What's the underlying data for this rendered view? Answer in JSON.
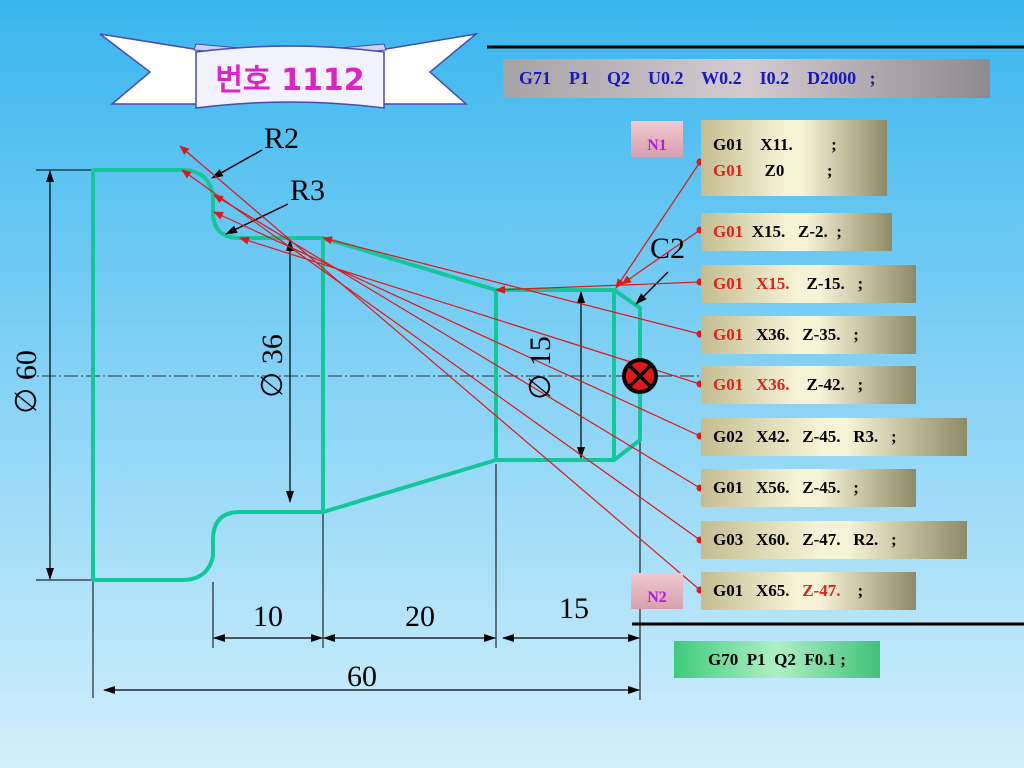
{
  "title": "번호 1112",
  "header_code": "G71    P1    Q2    U0.2    W0.2    I0.2    D2000   ;",
  "footer_code": "G70  P1  Q2  F0.1 ;",
  "labels": {
    "n1": "N1",
    "n2": "N2",
    "r2": "R2",
    "r3": "R3",
    "c2": "C2",
    "dia60": "∅ 60",
    "dia36": "∅ 36",
    "dia15": "∅ 15",
    "dim10": "10",
    "dim20": "20",
    "dim15": "15",
    "dim60": "60"
  },
  "blocks": [
    {
      "lines": [
        [
          {
            "t": "G01    X11.",
            "red": false
          },
          {
            "t": "         ;",
            "red": false
          }
        ],
        [
          {
            "t": "G01",
            "red": true
          },
          {
            "t": "     Z0",
            "red": false
          },
          {
            "t": "          ;",
            "red": false
          }
        ]
      ]
    },
    {
      "lines": [
        [
          {
            "t": "G01",
            "red": true
          },
          {
            "t": "  X15.   Z-2.  ;",
            "red": false
          }
        ]
      ]
    },
    {
      "lines": [
        [
          {
            "t": "G01",
            "red": true
          },
          {
            "t": "   ",
            "red": false
          },
          {
            "t": "X15.",
            "red": true
          },
          {
            "t": "    Z-15.   ;",
            "red": false
          }
        ]
      ]
    },
    {
      "lines": [
        [
          {
            "t": "G01",
            "red": true
          },
          {
            "t": "   X36.   Z-35.   ;",
            "red": false
          }
        ]
      ]
    },
    {
      "lines": [
        [
          {
            "t": "G01",
            "red": true
          },
          {
            "t": "   ",
            "red": false
          },
          {
            "t": "X36.",
            "red": true
          },
          {
            "t": "    Z-42.   ;",
            "red": false
          }
        ]
      ]
    },
    {
      "lines": [
        [
          {
            "t": "G02   X42.   Z-45.   R3.   ;",
            "red": false
          }
        ]
      ]
    },
    {
      "lines": [
        [
          {
            "t": "G01   X56.   Z-45.   ;",
            "red": false
          }
        ]
      ]
    },
    {
      "lines": [
        [
          {
            "t": "G03   X60.   Z-47.   R2.   ;",
            "red": false
          }
        ]
      ]
    },
    {
      "lines": [
        [
          {
            "t": "G01   X65.   ",
            "red": false
          },
          {
            "t": "Z-47.",
            "red": true
          },
          {
            "t": "    ;",
            "red": false
          }
        ]
      ]
    }
  ],
  "colors": {
    "part_outline": "#13c79a",
    "leader_lines": "#e01818",
    "dimension_lines": "#000000",
    "tag_text": "#b020e0",
    "header_text": "#1818c0"
  }
}
